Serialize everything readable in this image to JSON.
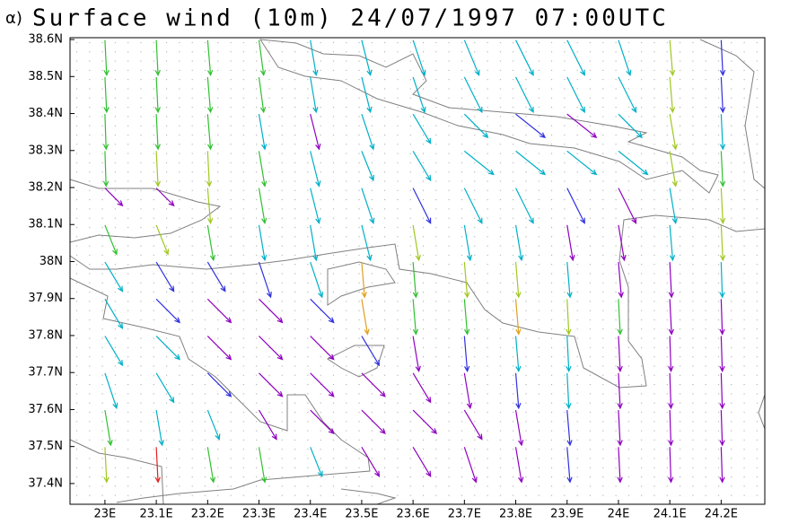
{
  "chart_data": {
    "type": "vector",
    "panel_label": "α)",
    "title": "Surface wind (10m) 24/07/1997 07:00UTC",
    "xlim": [
      22.932,
      24.285
    ],
    "ylim": [
      37.344,
      38.605
    ],
    "xticks": [
      {
        "value": 23.0,
        "label": "23E"
      },
      {
        "value": 23.1,
        "label": "23.1E"
      },
      {
        "value": 23.2,
        "label": "23.2E"
      },
      {
        "value": 23.3,
        "label": "23.3E"
      },
      {
        "value": 23.4,
        "label": "23.4E"
      },
      {
        "value": 23.5,
        "label": "23.5E"
      },
      {
        "value": 23.6,
        "label": "23.6E"
      },
      {
        "value": 23.7,
        "label": "23.7E"
      },
      {
        "value": 23.8,
        "label": "23.8E"
      },
      {
        "value": 23.9,
        "label": "23.9E"
      },
      {
        "value": 24.0,
        "label": "24E"
      },
      {
        "value": 24.1,
        "label": "24.1E"
      },
      {
        "value": 24.2,
        "label": "24.2E"
      }
    ],
    "yticks": [
      {
        "value": 37.4,
        "label": "37.4N"
      },
      {
        "value": 37.5,
        "label": "37.5N"
      },
      {
        "value": 37.6,
        "label": "37.6N"
      },
      {
        "value": 37.7,
        "label": "37.7N"
      },
      {
        "value": 37.8,
        "label": "37.8N"
      },
      {
        "value": 37.9,
        "label": "37.9N"
      },
      {
        "value": 38.0,
        "label": "38N"
      },
      {
        "value": 38.1,
        "label": "38.1N"
      },
      {
        "value": 38.2,
        "label": "38.2N"
      },
      {
        "value": 38.3,
        "label": "38.3N"
      },
      {
        "value": 38.4,
        "label": "38.4N"
      },
      {
        "value": 38.5,
        "label": "38.5N"
      },
      {
        "value": 38.6,
        "label": "38.6N"
      }
    ],
    "palette": [
      "#9000c0",
      "#3030e0",
      "#00b0c8",
      "#30c030",
      "#a0c820",
      "#e0a020",
      "#e02020"
    ],
    "lon": [
      23.0,
      23.1,
      23.2,
      23.3,
      23.4,
      23.5,
      23.6,
      23.7,
      23.8,
      23.9,
      24.0,
      24.1,
      24.2
    ],
    "lat": [
      38.55,
      38.45,
      38.35,
      38.25,
      38.15,
      38.05,
      37.95,
      37.85,
      37.75,
      37.65,
      37.55,
      37.45
    ],
    "u": [
      [
        0.3,
        0.3,
        0.5,
        0.8,
        1,
        1.5,
        2,
        2.5,
        3,
        3,
        2,
        0.5,
        0.3
      ],
      [
        0.3,
        0.3,
        0.5,
        0.8,
        1,
        1.5,
        2,
        3,
        3,
        3,
        3,
        0.5,
        0.3
      ],
      [
        0.2,
        0.3,
        0.5,
        1,
        1.5,
        2,
        3,
        4,
        5,
        5,
        4,
        1,
        0.3
      ],
      [
        0.2,
        0.3,
        0.3,
        1,
        1.5,
        2,
        3,
        5,
        5,
        5,
        5,
        1,
        0.3
      ],
      [
        3,
        3,
        0.5,
        1,
        1.5,
        2,
        3,
        3,
        3,
        3,
        3,
        1,
        0.3
      ],
      [
        2,
        2,
        1,
        1,
        1,
        1.5,
        1,
        1,
        1,
        1,
        1,
        0.5,
        0.3
      ],
      [
        3,
        3,
        3,
        2,
        2,
        0.5,
        0.5,
        0.5,
        0.5,
        0.5,
        0.5,
        0.3,
        0.2
      ],
      [
        3,
        4,
        4,
        4,
        4,
        1,
        0.5,
        0.5,
        0.5,
        0.3,
        0.3,
        0.3,
        0.2
      ],
      [
        3,
        4,
        4,
        4,
        4,
        3,
        1,
        0.5,
        0.5,
        0.3,
        0.3,
        0.2,
        0.2
      ],
      [
        2,
        3,
        4,
        4,
        4,
        4,
        3,
        1,
        0.5,
        0.3,
        0.3,
        0.2,
        0.2
      ],
      [
        1,
        1,
        2,
        3,
        4,
        4,
        4,
        3,
        1,
        0.5,
        0.3,
        0.2,
        0.2
      ],
      [
        0.3,
        0.3,
        1,
        1,
        2,
        3,
        3,
        2,
        1,
        0.5,
        0.3,
        0.2,
        0.2
      ]
    ],
    "v": [
      [
        -6,
        -6,
        -6,
        -6,
        -6,
        -6,
        -6,
        -6,
        -6,
        -6,
        -6,
        -6,
        -6
      ],
      [
        -6,
        -6,
        -6,
        -6,
        -6,
        -6,
        -6,
        -6,
        -6,
        -6,
        -6,
        -6,
        -6
      ],
      [
        -6,
        -6,
        -6,
        -6,
        -6,
        -6,
        -5,
        -4,
        -4,
        -4,
        -4,
        -6,
        -6
      ],
      [
        -6,
        -6,
        -6,
        -6,
        -6,
        -5,
        -5,
        -4,
        -4,
        -4,
        -4,
        -6,
        -6
      ],
      [
        -3,
        -3,
        -6,
        -6,
        -6,
        -6,
        -6,
        -6,
        -6,
        -6,
        -6,
        -6,
        -6
      ],
      [
        -5,
        -5,
        -6,
        -6,
        -6,
        -6,
        -6,
        -6,
        -6,
        -6,
        -6,
        -6,
        -6
      ],
      [
        -5,
        -5,
        -5,
        -6,
        -6,
        -6,
        -6,
        -6,
        -6,
        -6,
        -6,
        -6,
        -6
      ],
      [
        -5,
        -4,
        -4,
        -4,
        -4,
        -6,
        -6,
        -6,
        -6,
        -6,
        -6,
        -6,
        -6
      ],
      [
        -5,
        -4,
        -4,
        -4,
        -4,
        -5,
        -6,
        -6,
        -6,
        -6,
        -6,
        -6,
        -6
      ],
      [
        -6,
        -5,
        -4,
        -4,
        -4,
        -4,
        -5,
        -6,
        -6,
        -6,
        -6,
        -6,
        -6
      ],
      [
        -6,
        -6,
        -5,
        -5,
        -4,
        -4,
        -4,
        -5,
        -6,
        -6,
        -6,
        -6,
        -6
      ],
      [
        -6,
        -6,
        -6,
        -6,
        -5,
        -5,
        -5,
        -6,
        -6,
        -6,
        -6,
        -6,
        -6
      ]
    ],
    "color_index": [
      [
        3,
        3,
        3,
        3,
        2,
        2,
        2,
        2,
        2,
        2,
        2,
        4,
        1
      ],
      [
        3,
        3,
        3,
        3,
        2,
        2,
        2,
        2,
        2,
        2,
        2,
        4,
        1
      ],
      [
        3,
        3,
        3,
        2,
        0,
        2,
        2,
        2,
        1,
        0,
        2,
        4,
        2
      ],
      [
        3,
        4,
        4,
        3,
        2,
        2,
        2,
        2,
        2,
        2,
        2,
        4,
        3
      ],
      [
        0,
        0,
        4,
        3,
        2,
        2,
        1,
        2,
        2,
        1,
        0,
        2,
        4
      ],
      [
        3,
        4,
        3,
        2,
        2,
        2,
        4,
        2,
        2,
        0,
        0,
        2,
        4
      ],
      [
        2,
        1,
        1,
        1,
        2,
        5,
        3,
        4,
        4,
        2,
        0,
        0,
        2
      ],
      [
        2,
        1,
        0,
        0,
        1,
        5,
        3,
        3,
        5,
        4,
        3,
        0,
        0
      ],
      [
        2,
        2,
        0,
        0,
        0,
        1,
        0,
        1,
        2,
        2,
        0,
        0,
        0
      ],
      [
        2,
        2,
        1,
        0,
        0,
        0,
        0,
        0,
        1,
        2,
        0,
        0,
        0
      ],
      [
        3,
        2,
        2,
        0,
        0,
        0,
        0,
        0,
        0,
        1,
        0,
        0,
        0
      ],
      [
        4,
        6,
        3,
        3,
        2,
        0,
        0,
        0,
        0,
        1,
        0,
        0,
        0
      ]
    ]
  }
}
